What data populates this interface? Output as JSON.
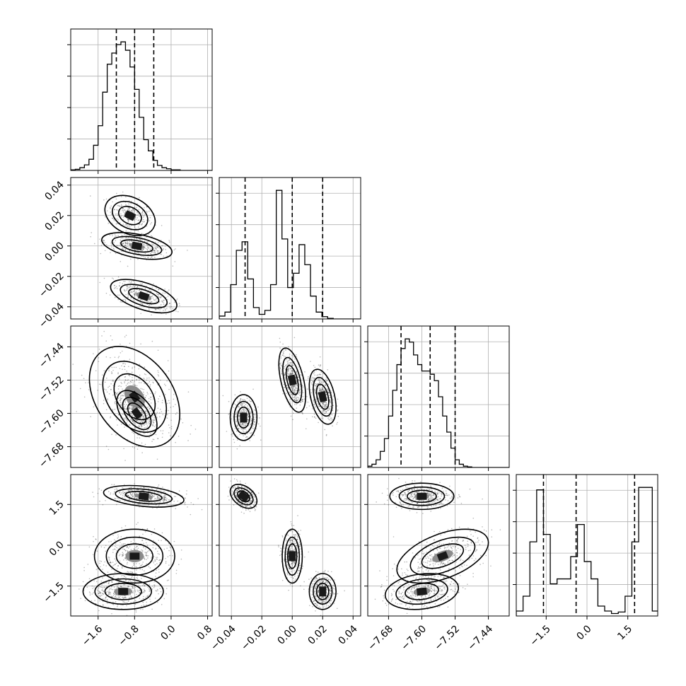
{
  "chart_data": {
    "type": "corner",
    "parameters": [
      {
        "id": "p0",
        "range": [
          -2.2,
          0.9
        ],
        "ticks": [
          -1.6,
          -0.8,
          0.0,
          0.8
        ],
        "tick_labels": [
          "−1.6",
          "−0.8",
          "0.0",
          "0.8"
        ],
        "quantiles": [
          -1.2,
          -0.8,
          -0.38
        ],
        "hist_bins": {
          "start": -2.2,
          "width": 0.1,
          "counts": [
            1,
            2,
            5,
            10,
            20,
            45,
            80,
            140,
            190,
            210,
            225,
            230,
            215,
            185,
            145,
            95,
            55,
            35,
            18,
            9,
            5,
            3,
            1,
            1,
            0,
            0,
            0,
            0,
            0,
            0,
            0
          ]
        }
      },
      {
        "id": "p1",
        "range": [
          -0.048,
          0.045
        ],
        "ticks": [
          -0.04,
          -0.02,
          0.0,
          0.02,
          0.04
        ],
        "tick_labels": [
          "−0.04",
          "−0.02",
          "0.00",
          "0.02",
          "0.04"
        ],
        "quantiles": [
          -0.031,
          0.0,
          0.02
        ],
        "hist_bins": {
          "start": -0.048,
          "width": 0.00375,
          "counts": [
            5,
            12,
            60,
            120,
            135,
            70,
            20,
            8,
            15,
            60,
            225,
            140,
            55,
            80,
            130,
            95,
            40,
            12,
            4,
            1,
            0,
            0,
            0,
            0,
            0
          ]
        }
      },
      {
        "id": "p2",
        "range": [
          -7.73,
          -7.39
        ],
        "ticks": [
          -7.68,
          -7.6,
          -7.52,
          -7.44
        ],
        "tick_labels": [
          "−7.68",
          "−7.60",
          "−7.52",
          "−7.44"
        ],
        "quantiles": [
          -7.65,
          -7.58,
          -7.52
        ],
        "hist_bins": {
          "start": -7.73,
          "width": 0.01,
          "counts": [
            2,
            5,
            12,
            25,
            45,
            80,
            120,
            160,
            185,
            200,
            195,
            175,
            160,
            150,
            150,
            145,
            135,
            110,
            80,
            55,
            30,
            12,
            5,
            2,
            1,
            0,
            0,
            0,
            0,
            0,
            0,
            0,
            0,
            0
          ]
        }
      },
      {
        "id": "p3",
        "range": [
          -2.6,
          2.6
        ],
        "ticks": [
          -1.5,
          0.0,
          1.5
        ],
        "tick_labels": [
          "−1.5",
          "0.0",
          "1.5"
        ],
        "quantiles": [
          -1.6,
          -0.4,
          1.75
        ],
        "hist_bins": {
          "start": -2.6,
          "width": 0.25,
          "counts": [
            10,
            40,
            150,
            255,
            165,
            65,
            75,
            75,
            120,
            185,
            110,
            75,
            20,
            10,
            5,
            8,
            40,
            150,
            260,
            260,
            10
          ]
        }
      }
    ],
    "pair_clusters": {
      "1_0": [
        [
          -0.9,
          0.02,
          0.25,
          0.006,
          -0.3,
          0.55
        ],
        [
          -0.75,
          0.0,
          0.35,
          0.004,
          -0.45,
          0.9
        ],
        [
          -0.6,
          -0.033,
          0.33,
          0.005,
          -0.55,
          0.85
        ]
      ],
      "2_0": [
        [
          -0.8,
          -7.56,
          0.45,
          0.055,
          -0.35,
          1.0
        ],
        [
          -0.75,
          -7.6,
          0.2,
          0.025,
          -0.5,
          0.9
        ]
      ],
      "2_1": [
        [
          -0.032,
          -7.61,
          0.004,
          0.025,
          0.0,
          0.85
        ],
        [
          0.0,
          -7.52,
          0.004,
          0.035,
          -0.5,
          1.0
        ],
        [
          0.02,
          -7.56,
          0.004,
          0.03,
          -0.4,
          0.85
        ]
      ],
      "3_0": [
        [
          -0.6,
          1.8,
          0.4,
          0.18,
          -0.35,
          1.0
        ],
        [
          -0.8,
          -0.4,
          0.4,
          0.45,
          0.0,
          0.85
        ],
        [
          -1.05,
          -1.7,
          0.4,
          0.3,
          0.0,
          0.95
        ]
      ],
      "3_1": [
        [
          -0.032,
          1.8,
          0.004,
          0.2,
          -0.4,
          1.0
        ],
        [
          0.0,
          -0.4,
          0.003,
          0.45,
          0.0,
          0.85
        ],
        [
          0.02,
          -1.7,
          0.004,
          0.3,
          0.0,
          0.9
        ]
      ],
      "3_2": [
        [
          -7.6,
          1.8,
          0.035,
          0.22,
          0.0,
          1.0
        ],
        [
          -7.55,
          -0.4,
          0.05,
          0.45,
          0.5,
          0.8
        ],
        [
          -7.6,
          -1.7,
          0.04,
          0.3,
          0.2,
          0.9
        ]
      ]
    }
  }
}
